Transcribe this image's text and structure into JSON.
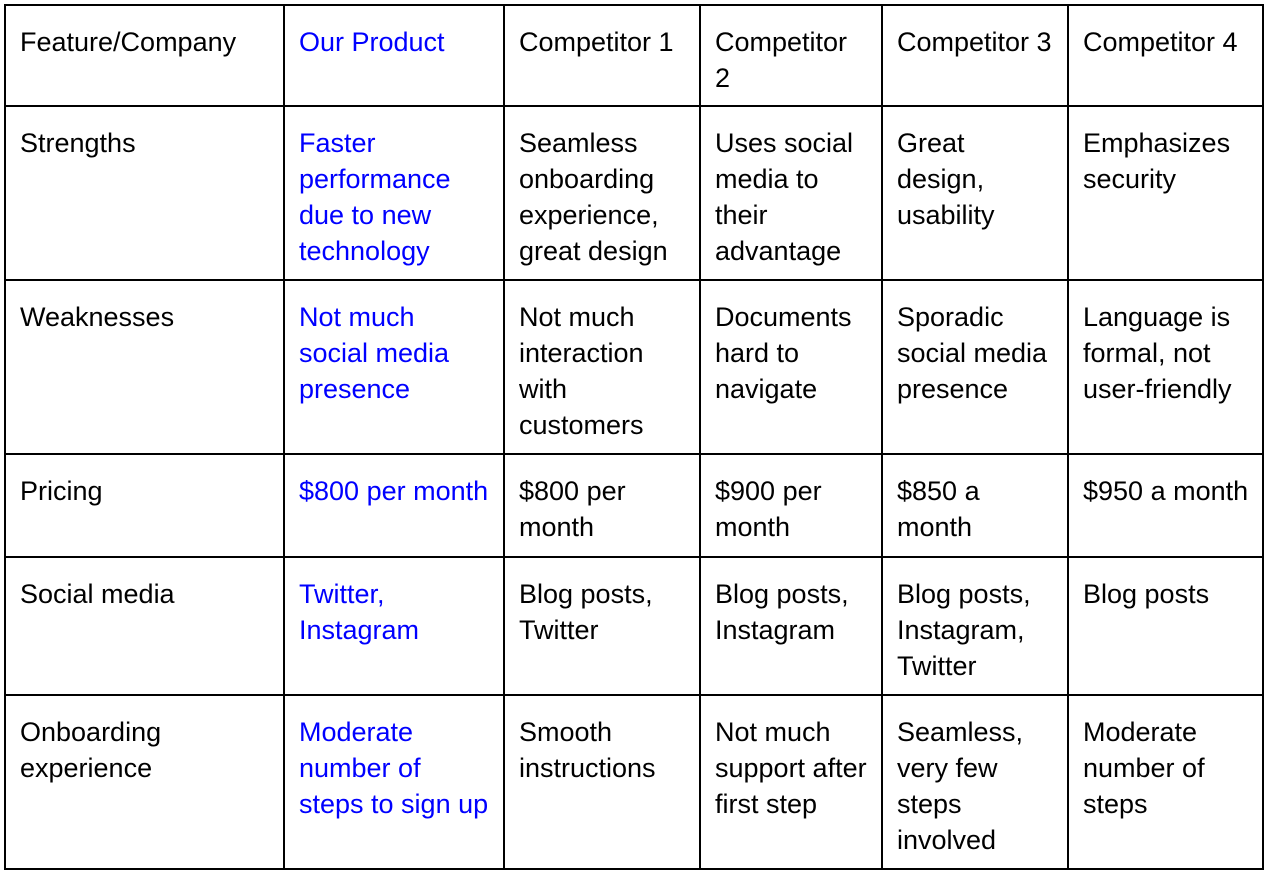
{
  "accent_color": "#0000ff",
  "table": {
    "header": [
      "Feature/Company",
      "Our Product",
      "Competitor 1",
      "Competitor 2",
      "Competitor 3",
      "Competitor 4"
    ],
    "rows": [
      {
        "feature": "Strengths",
        "cells": [
          "Faster performance due to new technology",
          "Seamless onboarding experience, great design",
          "Uses social media to their advantage",
          "Great design, usability",
          "Emphasizes security"
        ]
      },
      {
        "feature": "Weaknesses",
        "cells": [
          "Not much social media presence",
          "Not much interaction with customers",
          "Documents hard to navigate",
          "Sporadic social media presence",
          "Language is formal, not user-friendly"
        ]
      },
      {
        "feature": "Pricing",
        "cells": [
          "$800 per month",
          "$800 per month",
          "$900 per month",
          "$850 a month",
          "$950 a month"
        ]
      },
      {
        "feature": "Social media",
        "cells": [
          "Twitter, Instagram",
          "Blog posts, Twitter",
          "Blog posts, Instagram",
          "Blog posts, Instagram, Twitter",
          "Blog posts"
        ]
      },
      {
        "feature": "Onboarding experience",
        "cells": [
          "Moderate number of steps to sign up",
          "Smooth instructions",
          "Not much support after first step",
          "Seamless, very few steps involved",
          "Moderate number of steps"
        ]
      }
    ]
  }
}
